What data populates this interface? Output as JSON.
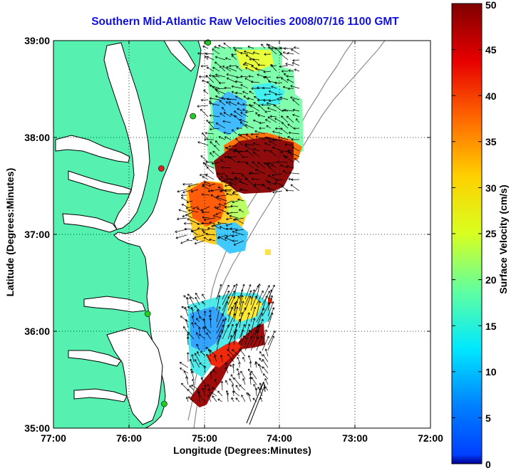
{
  "title": "Southern Mid-Atlantic Raw Velocities 2008/07/16 1100 GMT",
  "x_axis": {
    "label": "Longitude (Degrees:Minutes)",
    "ticks": [
      "77:00",
      "76:00",
      "75:00",
      "74:00",
      "73:00",
      "72:00"
    ]
  },
  "y_axis": {
    "label": "Latitude (Degrees:Minutes)",
    "ticks": [
      "39:00",
      "38:00",
      "37:00",
      "36:00",
      "35:00"
    ]
  },
  "colorbar": {
    "label": "Surface Velocity (cm/s)",
    "ticks": [
      "0",
      "5",
      "10",
      "15",
      "20",
      "25",
      "30",
      "35",
      "40",
      "45",
      "50"
    ],
    "range": [
      0,
      50
    ],
    "colormap": "jet"
  },
  "map": {
    "land_color": "#56f0b0",
    "coastline_color": "#000000",
    "bathymetry_color": "#8c8c8c",
    "grid": "dotted",
    "extent": {
      "lon": [
        -77,
        -72
      ],
      "lat": [
        35,
        39
      ]
    },
    "stations": [
      {
        "lon": -74.95,
        "lat": 38.98,
        "color": "#22cc22"
      },
      {
        "lon": -75.15,
        "lat": 38.22,
        "color": "#22cc22"
      },
      {
        "lon": -75.57,
        "lat": 37.68,
        "color": "#dd2222"
      },
      {
        "lon": -75.75,
        "lat": 36.18,
        "color": "#22cc22"
      },
      {
        "lon": -75.53,
        "lat": 35.25,
        "color": "#22cc22"
      }
    ]
  }
}
